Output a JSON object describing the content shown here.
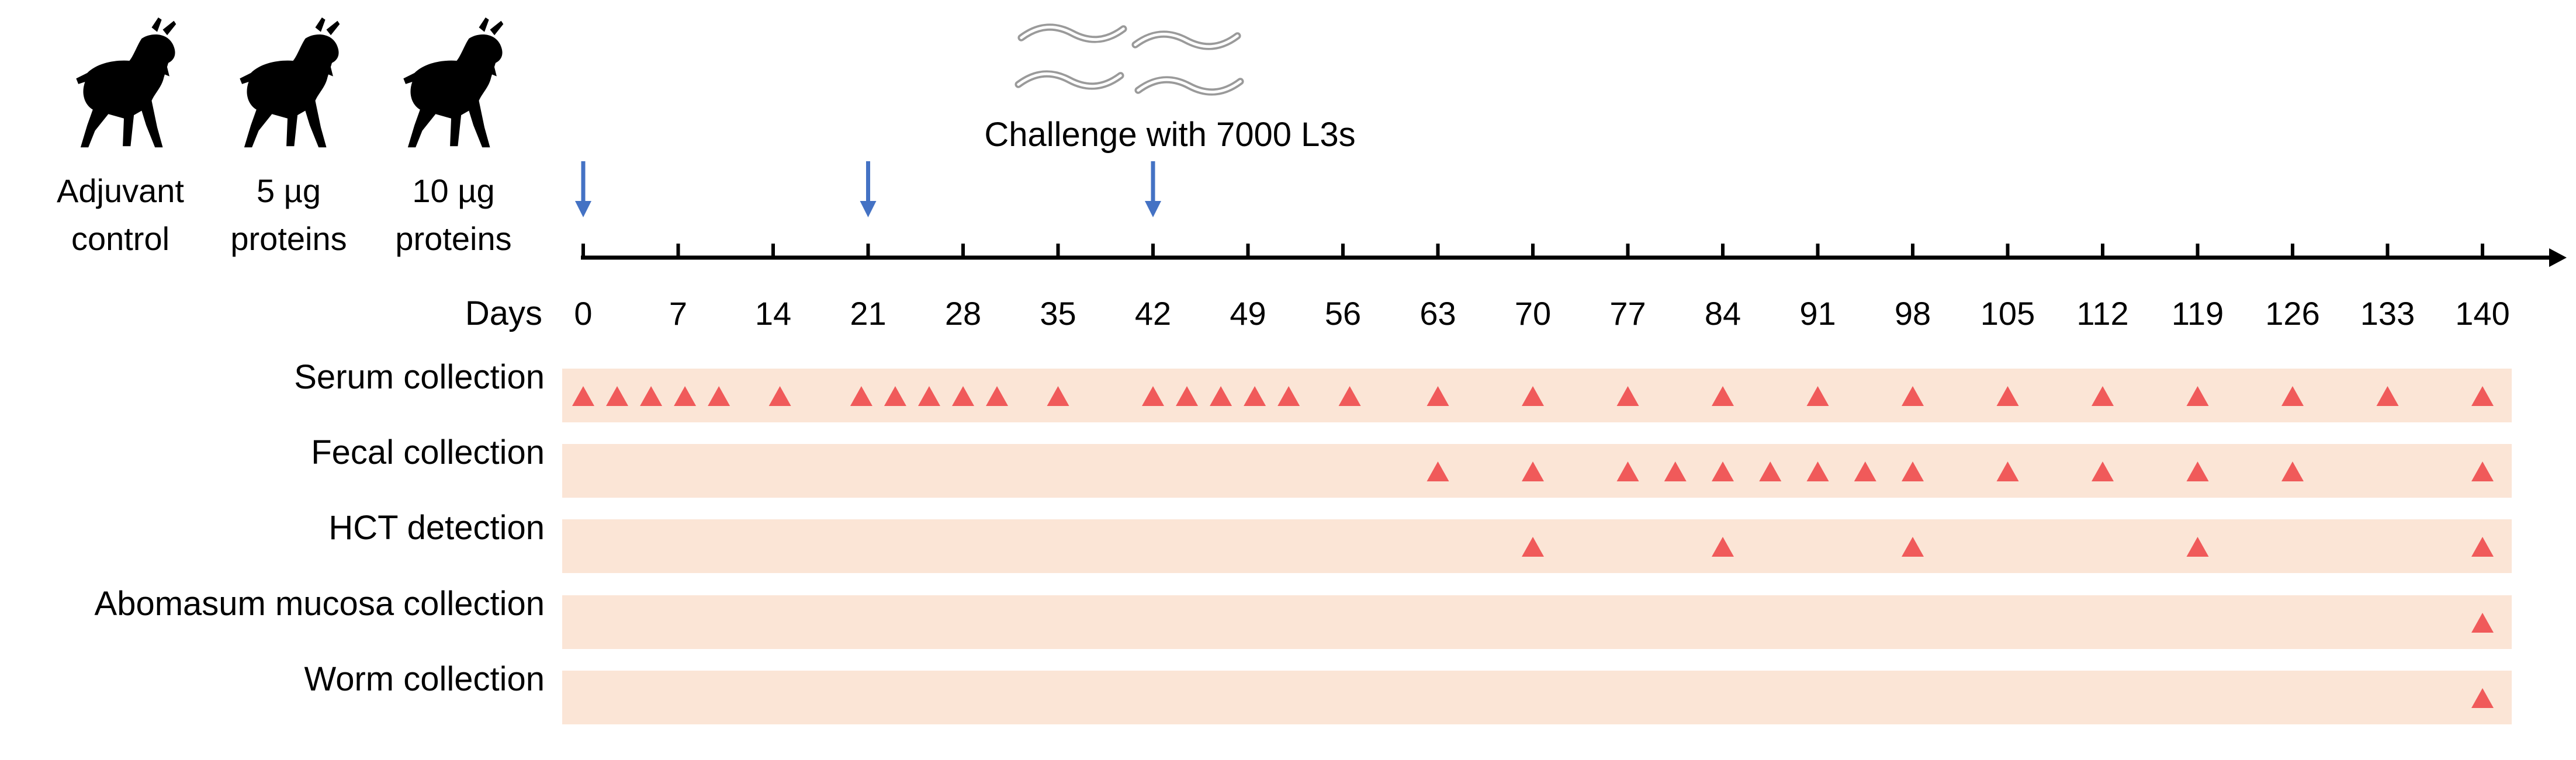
{
  "groups": [
    {
      "line1": "Adjuvant",
      "line2": "control",
      "icon": "goat-icon"
    },
    {
      "line1": "5 µg",
      "line2": "proteins",
      "icon": "goat-icon"
    },
    {
      "line1": "10 µg",
      "line2": "proteins",
      "icon": "goat-icon"
    }
  ],
  "challenge": {
    "label": "Challenge with 7000 L3s",
    "icon": "larvae-icon"
  },
  "timeline": {
    "axis_label": "Days",
    "ticks": [
      0,
      7,
      14,
      21,
      28,
      35,
      42,
      49,
      56,
      63,
      70,
      77,
      84,
      91,
      98,
      105,
      112,
      119,
      126,
      133,
      140
    ],
    "immunization_days": [
      0,
      21,
      42
    ],
    "arrow_color": "#4472C4"
  },
  "rows": [
    {
      "label": "Serum collection",
      "days": [
        0,
        2.5,
        5,
        7.5,
        10,
        14.5,
        20.5,
        23,
        25.5,
        28,
        30.5,
        35,
        42,
        44.5,
        47,
        49.5,
        52,
        56.5,
        63,
        70,
        77,
        84,
        91,
        98,
        105,
        112,
        119,
        126,
        133,
        140
      ]
    },
    {
      "label": "Fecal collection",
      "days": [
        63,
        70,
        77,
        80.5,
        84,
        87.5,
        91,
        94.5,
        98,
        105,
        112,
        119,
        126,
        140
      ]
    },
    {
      "label": "HCT detection",
      "days": [
        70,
        84,
        98,
        119,
        140
      ]
    },
    {
      "label": "Abomasum mucosa collection",
      "days": [
        140
      ]
    },
    {
      "label": "Worm collection",
      "days": [
        140
      ]
    }
  ],
  "colors": {
    "band": "#FBE5D6",
    "marker": "#F05A5A",
    "axis": "#000000"
  }
}
